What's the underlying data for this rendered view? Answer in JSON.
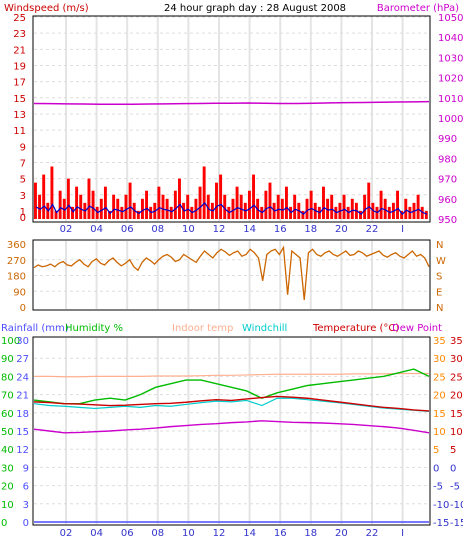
{
  "title": "24 hour graph day : 28 August 2008",
  "colors": {
    "windspeed": "#cc0000",
    "wind_gust": "#ff0000",
    "wind_avg": "#0000cc",
    "barometer": "#cc00cc",
    "direction": "#cc6600",
    "rainfall": "#4d4dff",
    "humidity": "#00bb00",
    "indoor": "#ffb090",
    "windchill": "#00cccc",
    "temperature": "#cc0000",
    "dewpoint": "#cc00cc",
    "temp_axis": "#ff8800",
    "neg_axis": "#3333cc",
    "grid": "#dddddd",
    "frame": "#000000"
  },
  "chart_data": [
    {
      "type": "bar",
      "panel": "wind-baro",
      "left_label": "Windspeed (m/s)",
      "right_label": "Barometer (hPa)",
      "x_ticks": [
        "02",
        "04",
        "06",
        "08",
        "10",
        "12",
        "14",
        "16",
        "18",
        "20",
        "22",
        "I"
      ],
      "left_ticks": [
        "25",
        "23",
        "21",
        "19",
        "17",
        "15",
        "13",
        "11",
        "9",
        "7",
        "5",
        "3",
        "1"
      ],
      "left_ticks_b": [
        "0"
      ],
      "right_ticks": [
        "1050",
        "1040",
        "1030",
        "1020",
        "1010",
        "1000",
        "990",
        "980",
        "970",
        "960",
        "950"
      ],
      "ylim_left": [
        0,
        25
      ],
      "ylim_right": [
        950,
        1050
      ],
      "series": [
        {
          "name": "gust",
          "values": [
            4.5,
            3.0,
            5.5,
            2.0,
            6.5,
            1.0,
            3.5,
            2.5,
            5.0,
            1.5,
            4.0,
            3.0,
            2.0,
            5.0,
            3.5,
            1.5,
            2.5,
            4.0,
            1.0,
            3.0,
            2.5,
            1.5,
            3.0,
            4.5,
            2.0,
            1.0,
            2.5,
            3.5,
            1.5,
            2.0,
            4.0,
            3.0,
            2.5,
            1.5,
            3.5,
            5.0,
            2.0,
            3.0,
            1.5,
            2.5,
            4.0,
            6.5,
            3.0,
            2.0,
            4.5,
            5.5,
            3.0,
            1.5,
            2.5,
            4.0,
            3.0,
            2.0,
            3.5,
            5.5,
            2.5,
            1.5,
            3.5,
            4.5,
            2.0,
            3.0,
            2.5,
            4.0,
            1.5,
            3.0,
            2.0,
            1.0,
            2.5,
            3.5,
            2.0,
            1.5,
            4.0,
            2.5,
            3.0,
            1.5,
            2.0,
            3.0,
            1.5,
            2.5,
            2.0,
            1.0,
            3.0,
            4.5,
            2.0,
            1.5,
            3.5,
            2.5,
            1.5,
            2.0,
            3.5,
            1.0,
            2.5,
            1.5,
            2.0,
            3.0,
            1.5,
            1.0
          ]
        },
        {
          "name": "average",
          "values": [
            1.5,
            1.2,
            1.6,
            1.0,
            1.8,
            0.8,
            1.4,
            1.1,
            1.7,
            0.9,
            1.5,
            1.2,
            1.0,
            1.6,
            1.3,
            0.8,
            1.1,
            1.4,
            0.7,
            1.2,
            1.1,
            0.9,
            1.2,
            1.5,
            1.0,
            0.7,
            1.1,
            1.3,
            0.8,
            1.0,
            1.4,
            1.2,
            1.1,
            0.9,
            1.3,
            1.8,
            1.0,
            1.2,
            0.8,
            1.1,
            1.5,
            2.0,
            1.2,
            1.0,
            1.6,
            1.8,
            1.2,
            0.8,
            1.1,
            1.4,
            1.2,
            1.0,
            1.3,
            1.7,
            1.1,
            0.8,
            1.3,
            1.5,
            1.0,
            1.2,
            1.1,
            1.4,
            0.8,
            1.2,
            1.0,
            0.6,
            1.1,
            1.3,
            1.0,
            0.8,
            1.4,
            1.1,
            1.2,
            0.8,
            1.0,
            1.2,
            0.8,
            1.1,
            1.0,
            0.6,
            1.2,
            1.5,
            1.0,
            0.8,
            1.3,
            1.1,
            0.8,
            1.0,
            1.3,
            0.6,
            1.1,
            0.8,
            1.0,
            1.2,
            0.8,
            0.6
          ]
        },
        {
          "name": "barometer",
          "values": [
            1007.2,
            1007.1,
            1007.0,
            1006.9,
            1006.8,
            1006.8,
            1006.8,
            1006.9,
            1007.0,
            1007.1,
            1007.2,
            1007.3,
            1007.3,
            1007.4,
            1007.3,
            1007.2,
            1007.2,
            1007.3,
            1007.5,
            1007.6,
            1007.7,
            1007.8,
            1007.9,
            1008.0,
            1008.1
          ]
        }
      ]
    },
    {
      "type": "line",
      "panel": "direction",
      "left_ticks": [
        "360",
        "270",
        "180",
        "90",
        "0"
      ],
      "right_ticks": [
        "N",
        "W",
        "S",
        "E",
        "N"
      ],
      "ylim": [
        0,
        360
      ],
      "values": [
        225,
        240,
        230,
        235,
        245,
        230,
        250,
        260,
        240,
        235,
        255,
        270,
        245,
        230,
        260,
        275,
        250,
        240,
        265,
        280,
        255,
        235,
        250,
        270,
        230,
        210,
        255,
        280,
        265,
        245,
        270,
        290,
        300,
        285,
        260,
        270,
        300,
        285,
        270,
        255,
        290,
        320,
        300,
        280,
        310,
        330,
        315,
        295,
        310,
        320,
        290,
        300,
        330,
        310,
        280,
        150,
        300,
        320,
        330,
        300,
        340,
        70,
        320,
        300,
        280,
        40,
        310,
        330,
        300,
        290,
        310,
        320,
        300,
        290,
        305,
        320,
        295,
        300,
        320,
        310,
        290,
        300,
        310,
        320,
        295,
        285,
        300,
        310,
        290,
        280,
        300,
        320,
        290,
        300,
        280,
        230
      ]
    },
    {
      "type": "line",
      "panel": "temperature",
      "legend": [
        "Rainfall (mm)",
        "Humidity %",
        "Indoor temp",
        "Windchill",
        "Temperature (°C)",
        "Dew Point"
      ],
      "x_ticks": [
        "02",
        "04",
        "06",
        "08",
        "10",
        "12",
        "14",
        "16",
        "18",
        "20",
        "22",
        "I"
      ],
      "rain_ticks": [
        "30",
        "27",
        "24",
        "21",
        "18",
        "15",
        "12",
        "9",
        "6",
        "3",
        "0"
      ],
      "humidity_ticks": [
        "100",
        "90",
        "80",
        "70",
        "60",
        "50",
        "40",
        "30",
        "20",
        "10",
        "0"
      ],
      "temp_ticks": [
        "35",
        "30",
        "25",
        "20",
        "15",
        "10",
        "5",
        "0",
        "-5",
        "-10",
        "-15"
      ],
      "ylim_temp": [
        -15,
        35
      ],
      "ylim_humidity": [
        0,
        100
      ],
      "ylim_rain": [
        0,
        30
      ],
      "series": [
        {
          "name": "Temperature (°C)",
          "values": [
            18.0,
            17.8,
            17.5,
            17.4,
            17.2,
            17.0,
            17.1,
            17.3,
            17.5,
            17.6,
            17.9,
            18.3,
            18.6,
            18.4,
            18.8,
            19.2,
            19.5,
            19.3,
            19.0,
            18.5,
            18.0,
            17.5,
            17.0,
            16.5,
            16.2,
            15.8,
            15.5
          ]
        },
        {
          "name": "Windchill",
          "values": [
            17.5,
            17.0,
            16.8,
            16.5,
            16.2,
            16.5,
            16.8,
            16.5,
            17.0,
            16.8,
            17.3,
            17.8,
            18.2,
            18.0,
            18.4,
            17.0,
            19.0,
            19.0,
            18.6,
            18.2,
            17.8,
            17.3,
            16.8,
            16.3,
            16.0,
            15.7,
            15.4
          ]
        },
        {
          "name": "Indoor temp",
          "values": [
            25.0,
            25.0,
            24.9,
            24.9,
            25.0,
            25.0,
            25.0,
            25.0,
            25.1,
            25.1,
            25.1,
            25.2,
            25.3,
            25.3,
            25.4,
            25.5,
            25.6,
            25.6,
            25.6,
            25.6,
            25.6,
            25.7,
            25.7,
            25.7,
            25.8,
            25.8,
            25.8
          ]
        },
        {
          "name": "Humidity %",
          "values": [
            67,
            66,
            65,
            65,
            67,
            68,
            67,
            70,
            74,
            76,
            78,
            78,
            76,
            74,
            72,
            68,
            71,
            73,
            75,
            76,
            77,
            78,
            79,
            80,
            82,
            84,
            80
          ]
        },
        {
          "name": "Dew Point",
          "values": [
            10.5,
            10.0,
            9.5,
            9.6,
            9.8,
            10.0,
            10.3,
            10.5,
            10.8,
            11.2,
            11.5,
            11.8,
            12.0,
            12.3,
            12.5,
            12.8,
            12.6,
            12.4,
            12.3,
            12.2,
            12.0,
            11.8,
            11.5,
            11.2,
            10.8,
            10.2,
            9.5
          ]
        },
        {
          "name": "Rainfall (mm)",
          "values": [
            0,
            0,
            0,
            0,
            0,
            0,
            0,
            0,
            0,
            0,
            0,
            0,
            0,
            0,
            0,
            0,
            0,
            0,
            0,
            0,
            0,
            0,
            0,
            0,
            0,
            0,
            0
          ]
        }
      ]
    }
  ]
}
